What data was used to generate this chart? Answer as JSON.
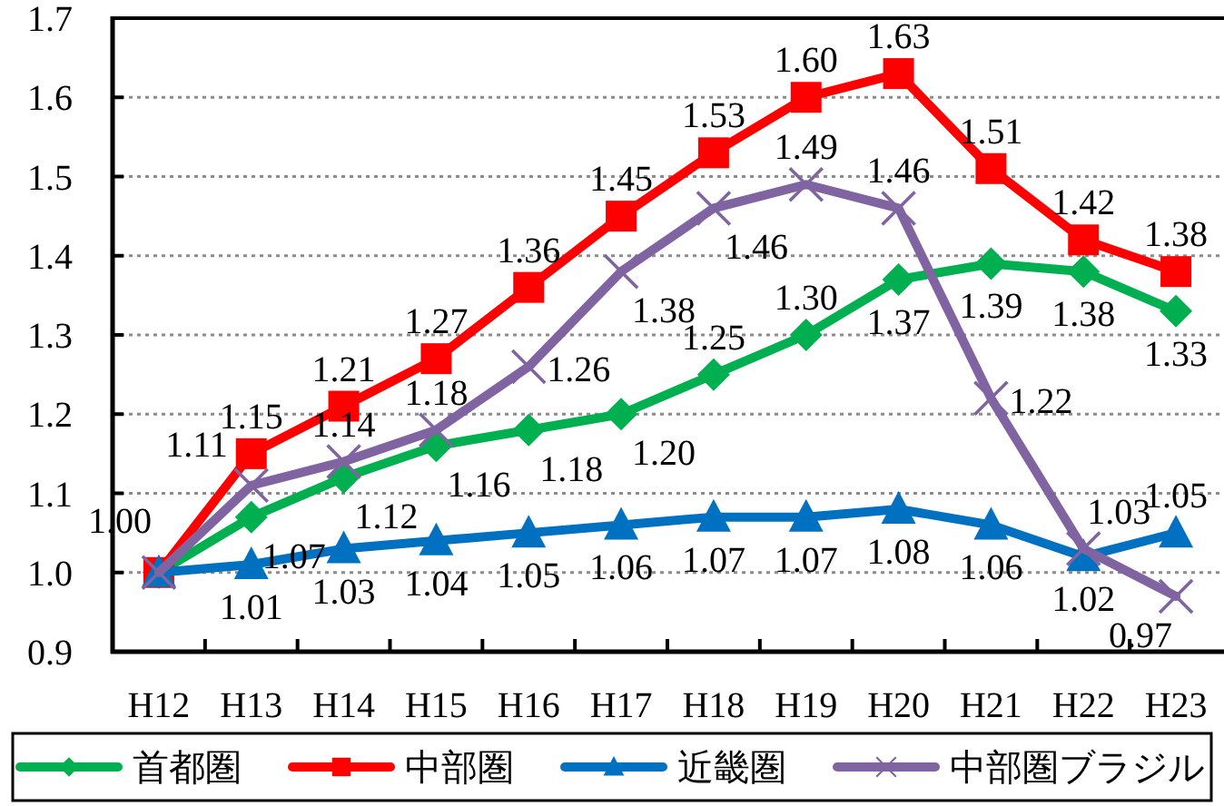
{
  "chart_data": {
    "type": "line",
    "categories": [
      "H12",
      "H13",
      "H14",
      "H15",
      "H16",
      "H17",
      "H18",
      "H19",
      "H20",
      "H21",
      "H22",
      "H23"
    ],
    "series": [
      {
        "name": "首都圏",
        "color": "#00b050",
        "marker": "diamond",
        "values": [
          1.0,
          1.07,
          1.12,
          1.16,
          1.18,
          1.2,
          1.25,
          1.3,
          1.37,
          1.39,
          1.38,
          1.33
        ],
        "value_labels": [
          null,
          "1.07",
          "1.12",
          "1.16",
          "1.18",
          "1.20",
          "1.25",
          "1.30",
          "1.37",
          "1.39",
          "1.38",
          "1.33"
        ]
      },
      {
        "name": "中部圏",
        "color": "#ff0000",
        "marker": "square",
        "values": [
          1.0,
          1.15,
          1.21,
          1.27,
          1.36,
          1.45,
          1.53,
          1.6,
          1.63,
          1.51,
          1.42,
          1.38
        ],
        "value_labels": [
          "1.00",
          "1.15",
          "1.21",
          "1.27",
          "1.36",
          "1.45",
          "1.53",
          "1.60",
          "1.63",
          "1.51",
          "1.42",
          "1.38"
        ]
      },
      {
        "name": "近畿圏",
        "color": "#0070c0",
        "marker": "triangle",
        "values": [
          1.0,
          1.01,
          1.03,
          1.04,
          1.05,
          1.06,
          1.07,
          1.07,
          1.08,
          1.06,
          1.02,
          1.05
        ],
        "value_labels": [
          null,
          "1.01",
          "1.03",
          "1.04",
          "1.05",
          "1.06",
          "1.07",
          "1.07",
          "1.08",
          "1.06",
          "1.02",
          "1.05"
        ]
      },
      {
        "name": "中部圏ブラジル",
        "color": "#8064a2",
        "marker": "cross",
        "values": [
          1.0,
          1.11,
          1.14,
          1.18,
          1.26,
          1.38,
          1.46,
          1.49,
          1.46,
          1.22,
          1.03,
          0.97
        ],
        "value_labels": [
          null,
          "1.11",
          "1.14",
          "1.18",
          "1.26",
          "1.38",
          "1.46",
          "1.49",
          "1.46",
          "1.22",
          "1.03",
          "0.97"
        ]
      }
    ],
    "ylim": [
      0.9,
      1.7
    ],
    "yticks": [
      0.9,
      {
        "value": 1,
        "label": "1.0"
      },
      1.1,
      1.2,
      1.3,
      1.4,
      1.5,
      1.6,
      1.7
    ],
    "grid": "y",
    "legend": "bottom"
  }
}
